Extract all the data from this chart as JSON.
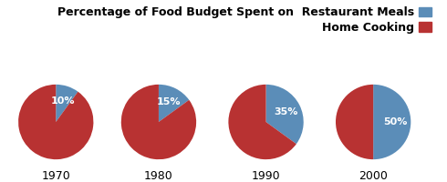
{
  "years": [
    "1970",
    "1980",
    "1990",
    "2000"
  ],
  "restaurant_pct": [
    10,
    15,
    35,
    50
  ],
  "home_pct": [
    90,
    85,
    65,
    50
  ],
  "restaurant_color": "#5B8DB8",
  "home_color": "#B83232",
  "legend_labels": [
    "Percentage of Food Budget Spent on  Restaurant Meals",
    "Home Cooking"
  ],
  "background_color": "#ffffff",
  "year_fontsize": 9,
  "legend_fontsize": 9,
  "pct_fontsize": 8
}
